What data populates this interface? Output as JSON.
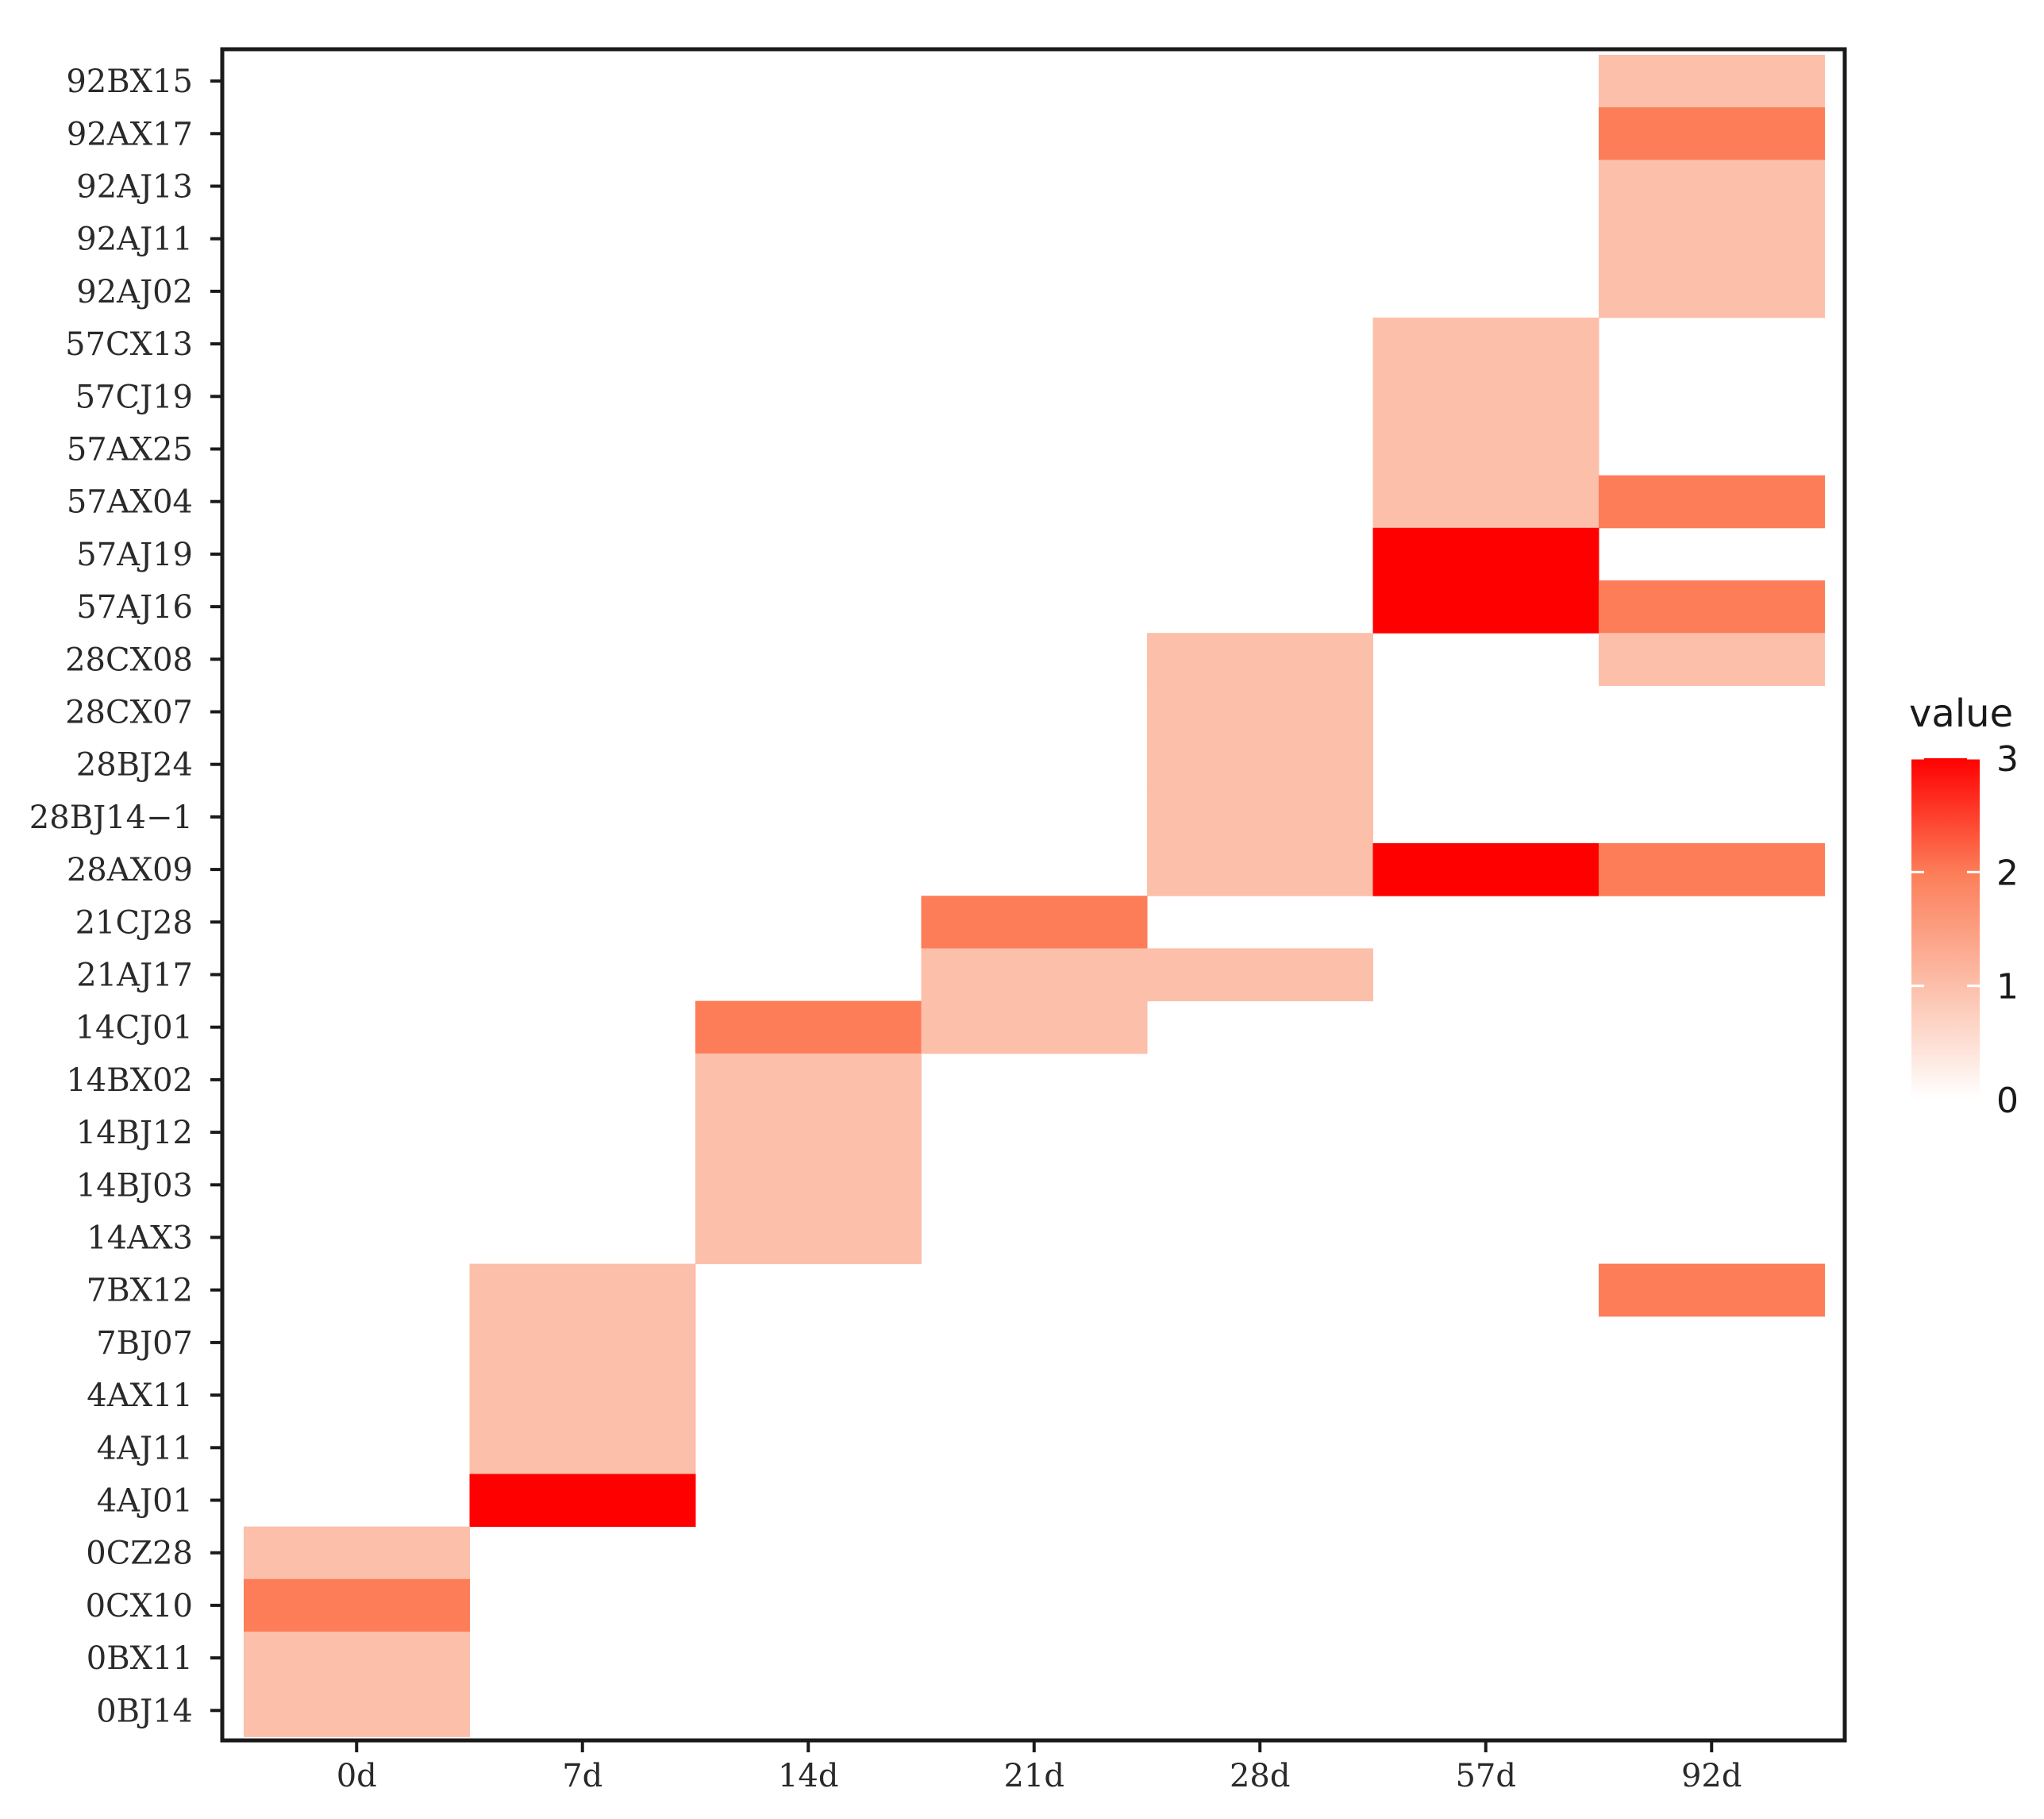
{
  "chart_data": {
    "type": "heatmap",
    "x_categories": [
      "0d",
      "7d",
      "14d",
      "21d",
      "28d",
      "57d",
      "92d"
    ],
    "y_categories": [
      "92BX15",
      "92AX17",
      "92AJ13",
      "92AJ11",
      "92AJ02",
      "57CX13",
      "57CJ19",
      "57AX25",
      "57AX04",
      "57AJ19",
      "57AJ16",
      "28CX08",
      "28CX07",
      "28BJ24",
      "28BJ14−1",
      "28AX09",
      "21CJ28",
      "21AJ17",
      "14CJ01",
      "14BX02",
      "14BJ12",
      "14BJ03",
      "14AX3",
      "7BX12",
      "7BJ07",
      "4AX11",
      "4AJ11",
      "4AJ01",
      "0CZ28",
      "0CX10",
      "0BX11",
      "0BJ14"
    ],
    "cells": [
      {
        "x": "92d",
        "y": "92BX15",
        "value": 1
      },
      {
        "x": "92d",
        "y": "92AX17",
        "value": 2
      },
      {
        "x": "92d",
        "y": "92AJ13",
        "value": 1
      },
      {
        "x": "92d",
        "y": "92AJ11",
        "value": 1
      },
      {
        "x": "92d",
        "y": "92AJ02",
        "value": 1
      },
      {
        "x": "57d",
        "y": "57CX13",
        "value": 1
      },
      {
        "x": "57d",
        "y": "57CJ19",
        "value": 1
      },
      {
        "x": "57d",
        "y": "57AX25",
        "value": 1
      },
      {
        "x": "57d",
        "y": "57AX04",
        "value": 1
      },
      {
        "x": "92d",
        "y": "57AX04",
        "value": 2
      },
      {
        "x": "57d",
        "y": "57AJ19",
        "value": 3
      },
      {
        "x": "57d",
        "y": "57AJ16",
        "value": 3
      },
      {
        "x": "92d",
        "y": "57AJ16",
        "value": 2
      },
      {
        "x": "28d",
        "y": "28CX08",
        "value": 1
      },
      {
        "x": "92d",
        "y": "28CX08",
        "value": 1
      },
      {
        "x": "28d",
        "y": "28CX07",
        "value": 1
      },
      {
        "x": "28d",
        "y": "28BJ24",
        "value": 1
      },
      {
        "x": "28d",
        "y": "28BJ14−1",
        "value": 1
      },
      {
        "x": "28d",
        "y": "28AX09",
        "value": 1
      },
      {
        "x": "57d",
        "y": "28AX09",
        "value": 3
      },
      {
        "x": "92d",
        "y": "28AX09",
        "value": 2
      },
      {
        "x": "21d",
        "y": "21CJ28",
        "value": 2
      },
      {
        "x": "21d",
        "y": "21AJ17",
        "value": 1
      },
      {
        "x": "28d",
        "y": "21AJ17",
        "value": 1
      },
      {
        "x": "14d",
        "y": "14CJ01",
        "value": 2
      },
      {
        "x": "21d",
        "y": "14CJ01",
        "value": 1
      },
      {
        "x": "14d",
        "y": "14BX02",
        "value": 1
      },
      {
        "x": "14d",
        "y": "14BJ12",
        "value": 1
      },
      {
        "x": "14d",
        "y": "14BJ03",
        "value": 1
      },
      {
        "x": "14d",
        "y": "14AX3",
        "value": 1
      },
      {
        "x": "7d",
        "y": "7BX12",
        "value": 1
      },
      {
        "x": "92d",
        "y": "7BX12",
        "value": 2
      },
      {
        "x": "7d",
        "y": "7BJ07",
        "value": 1
      },
      {
        "x": "7d",
        "y": "4AX11",
        "value": 1
      },
      {
        "x": "7d",
        "y": "4AJ11",
        "value": 1
      },
      {
        "x": "7d",
        "y": "4AJ01",
        "value": 3
      },
      {
        "x": "0d",
        "y": "0CZ28",
        "value": 1
      },
      {
        "x": "0d",
        "y": "0CX10",
        "value": 2
      },
      {
        "x": "0d",
        "y": "0BX11",
        "value": 1
      },
      {
        "x": "0d",
        "y": "0BJ14",
        "value": 1
      }
    ],
    "color_scale": {
      "min": 0,
      "max": 3,
      "low": "#ffffff",
      "high": "#ff0000"
    },
    "value_colors": {
      "1": "#fcbfaa",
      "2": "#fc7d58",
      "3": "#ff0000"
    },
    "legend": {
      "title": "value",
      "ticks": [
        "0",
        "1",
        "2",
        "3"
      ],
      "position": "right"
    },
    "grid": false,
    "title": "",
    "xlabel": "",
    "ylabel": ""
  }
}
